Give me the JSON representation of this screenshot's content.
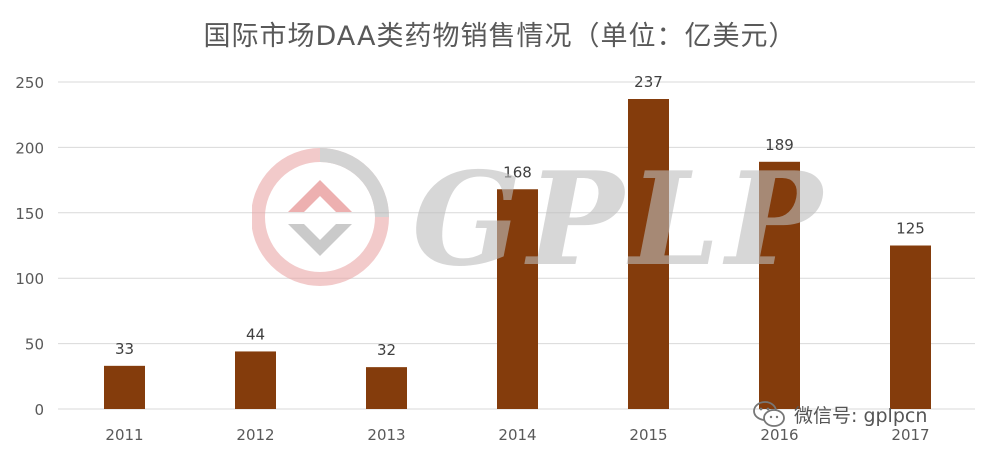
{
  "chart_data": {
    "type": "bar",
    "title": "国际市场DAA类药物销售情况（单位：亿美元）",
    "categories": [
      "2011",
      "2012",
      "2013",
      "2014",
      "2015",
      "2016",
      "2017"
    ],
    "series": [
      {
        "values": [
          33,
          44,
          32,
          168,
          237,
          189,
          125
        ]
      }
    ],
    "data_labels": [
      "33",
      "44",
      "32",
      "168",
      "237",
      "189",
      "125"
    ],
    "y_ticks": [
      0,
      50,
      100,
      150,
      200,
      250
    ],
    "ylim": [
      0,
      250
    ],
    "grid": true,
    "bar_color": "#843C0C",
    "grid_color": "#D9D9D9",
    "axis_text_color": "#595959",
    "legend": "none"
  },
  "watermark": {
    "text": "GPLP",
    "logo_icon": "gplp-logo-icon"
  },
  "footer": {
    "icon": "wechat-icon",
    "text": "微信号: gplpcn"
  }
}
